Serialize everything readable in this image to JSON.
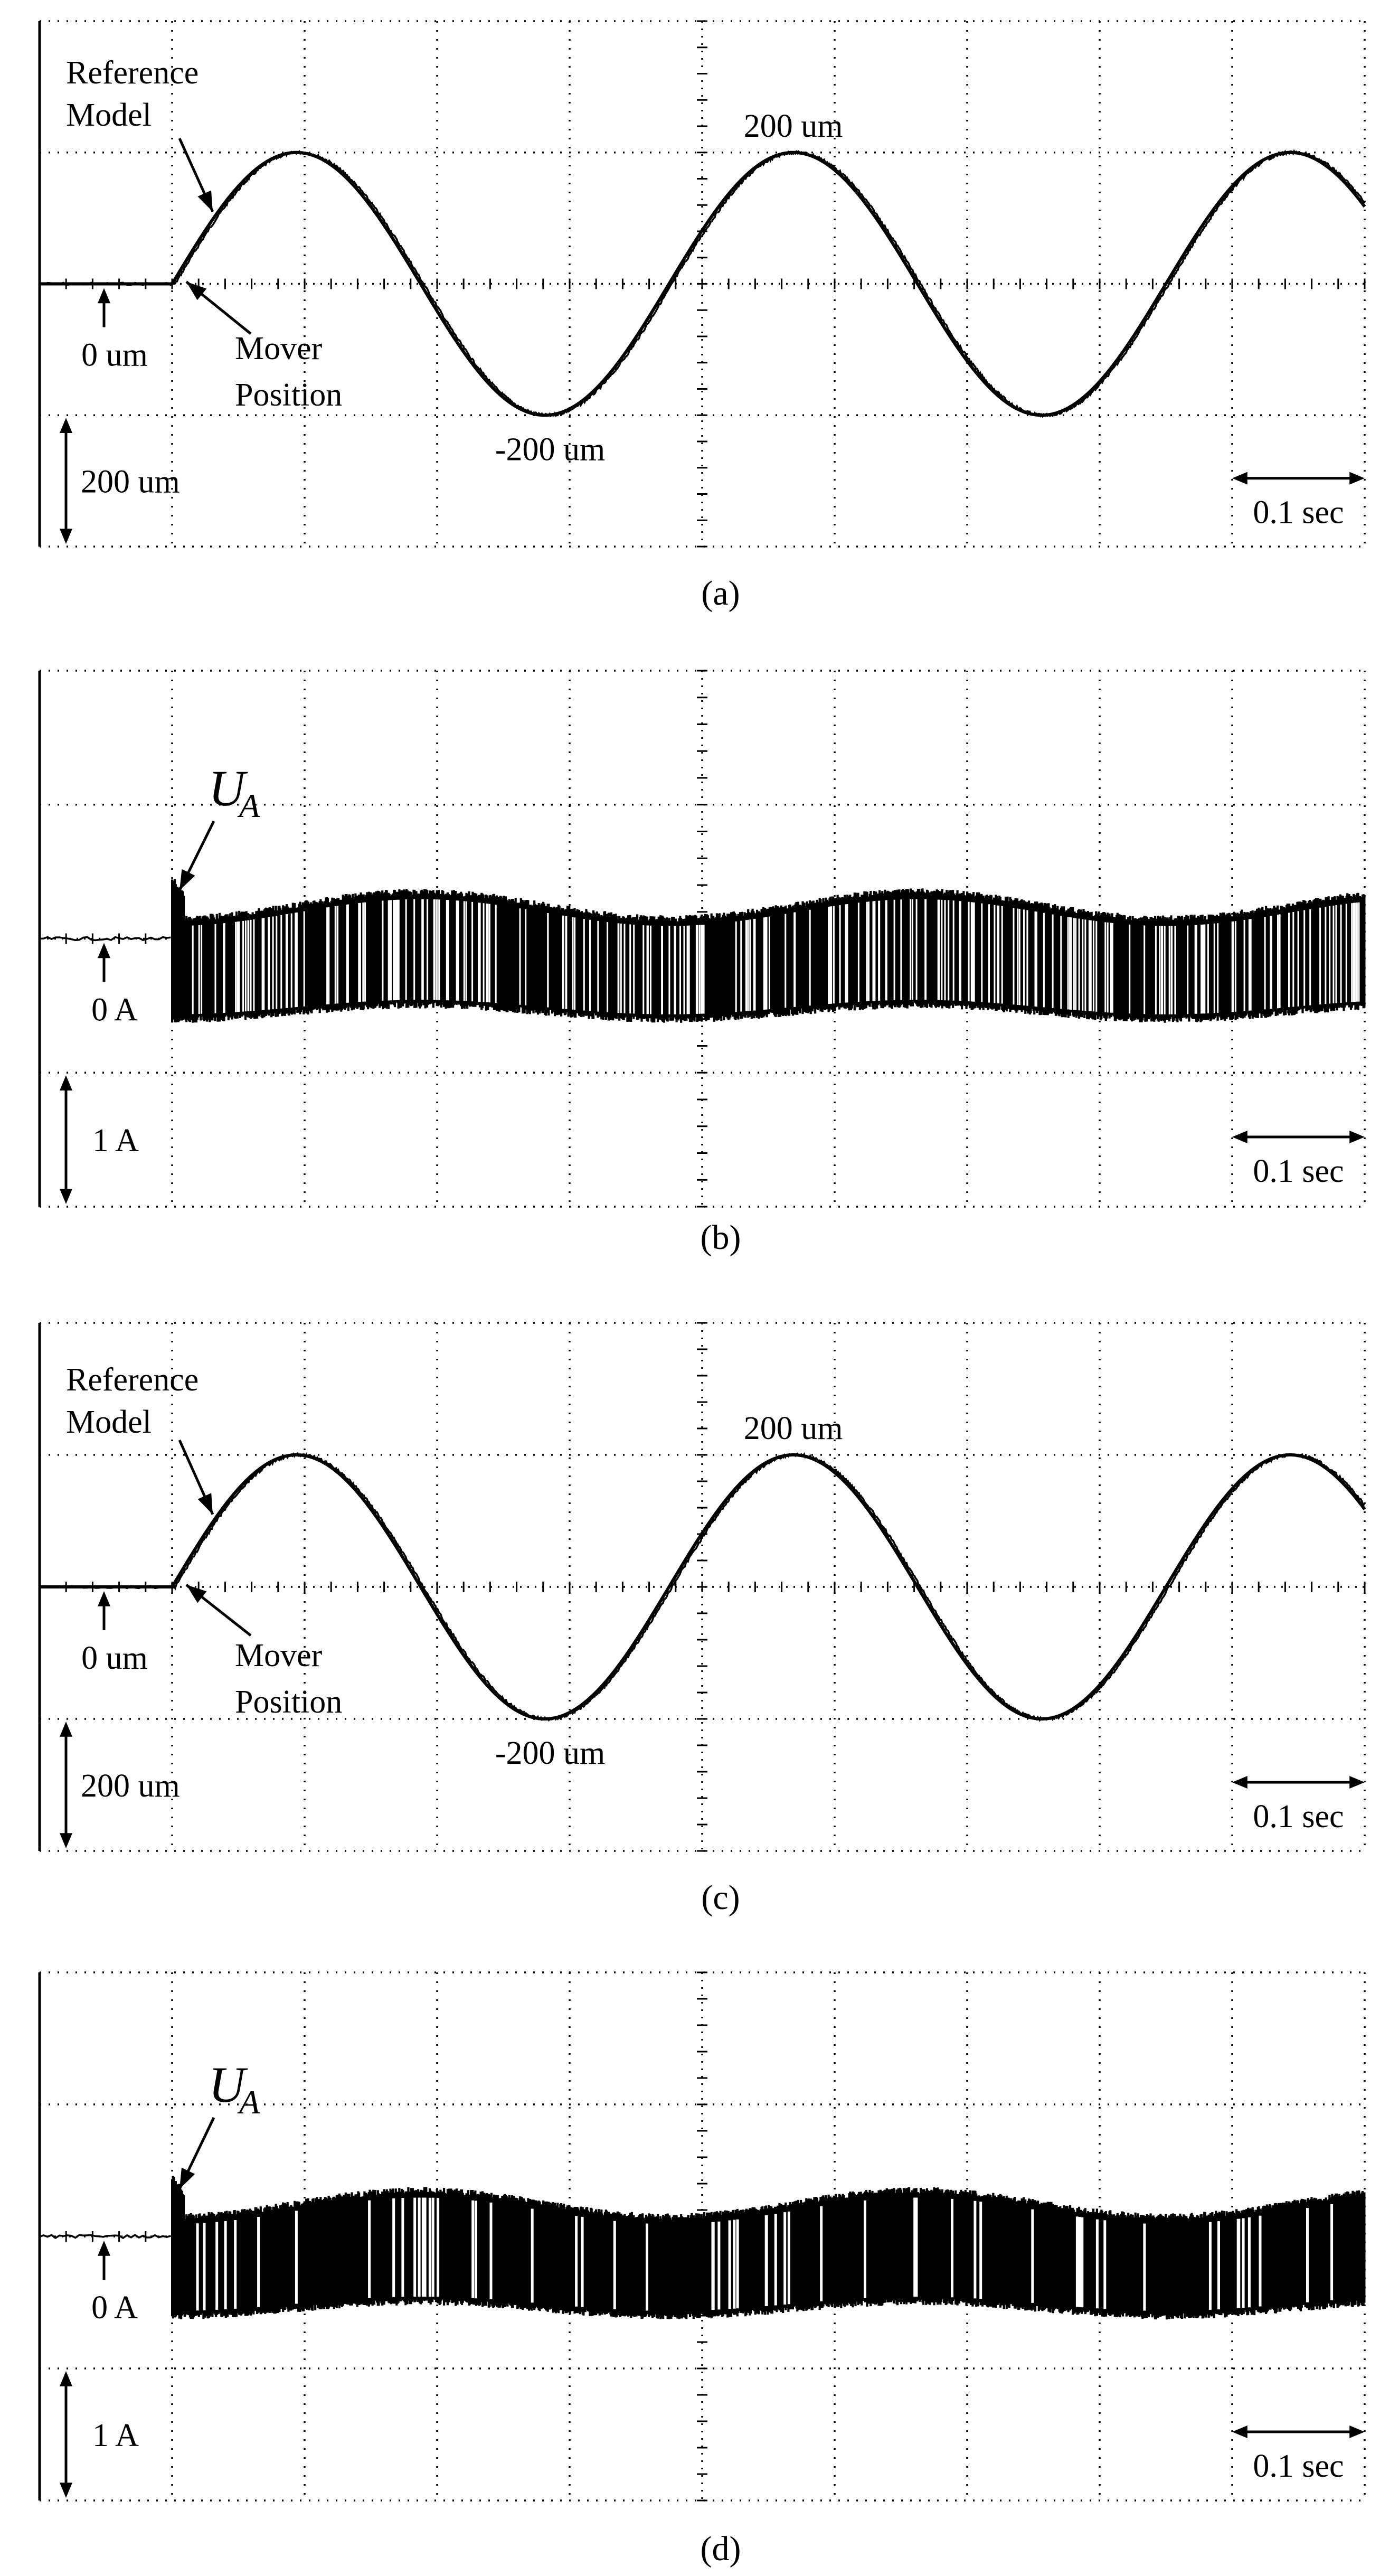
{
  "chart_data": [
    {
      "type": "line",
      "caption": "(a)",
      "annotations": {
        "reference_model": [
          "Reference",
          "Model"
        ],
        "mover_position": [
          "Mover",
          "Position"
        ],
        "peak": "200 um",
        "trough": "-200 um",
        "zero": "0 um",
        "vertical_scale": "200 um",
        "time_scale": "0.1 sec"
      },
      "series": [
        {
          "name": "Reference Model",
          "amplitude_um": 200,
          "frequency_hz": 4,
          "start_time_s": 0.0667
        },
        {
          "name": "Mover Position",
          "amplitude_um": 200,
          "frequency_hz": 4,
          "start_time_s": 0.0667
        }
      ],
      "xlim": [
        0,
        0.6667
      ],
      "ylim": [
        -400,
        400
      ],
      "grid": true
    },
    {
      "type": "line",
      "caption": "(b)",
      "annotations": {
        "signal": "U",
        "signal_sub": "A",
        "zero": "0 A",
        "vertical_scale": "1 A",
        "time_scale": "0.1 sec"
      },
      "series": [
        {
          "name": "U_A",
          "switching_min_a": -0.6,
          "envelope_center_a": 0.25,
          "envelope_amplitude_a": 0.1,
          "frequency_hz": 4,
          "start_time_s": 0.0667
        }
      ],
      "xlim": [
        0,
        0.6667
      ],
      "ylim": [
        -2,
        2
      ],
      "grid": true
    },
    {
      "type": "line",
      "caption": "(c)",
      "annotations": {
        "reference_model": [
          "Reference",
          "Model"
        ],
        "mover_position": [
          "Mover",
          "Position"
        ],
        "peak": "200 um",
        "trough": "-200 um",
        "zero": "0 um",
        "vertical_scale": "200 um",
        "time_scale": "0.1 sec"
      },
      "series": [
        {
          "name": "Reference Model",
          "amplitude_um": 200,
          "frequency_hz": 4,
          "start_time_s": 0.0667
        },
        {
          "name": "Mover Position",
          "amplitude_um": 200,
          "frequency_hz": 4,
          "start_time_s": 0.0667
        }
      ],
      "xlim": [
        0,
        0.6667
      ],
      "ylim": [
        -400,
        400
      ],
      "grid": true
    },
    {
      "type": "line",
      "caption": "(d)",
      "annotations": {
        "signal": "U",
        "signal_sub": "A",
        "zero": "0 A",
        "vertical_scale": "1 A",
        "time_scale": "0.1 sec"
      },
      "series": [
        {
          "name": "U_A",
          "switching_min_a": -0.6,
          "envelope_center_a": 0.25,
          "envelope_amplitude_a": 0.1,
          "frequency_hz": 4,
          "start_time_s": 0.0667
        }
      ],
      "xlim": [
        0,
        0.6667
      ],
      "ylim": [
        -2,
        2
      ],
      "grid": true
    }
  ]
}
